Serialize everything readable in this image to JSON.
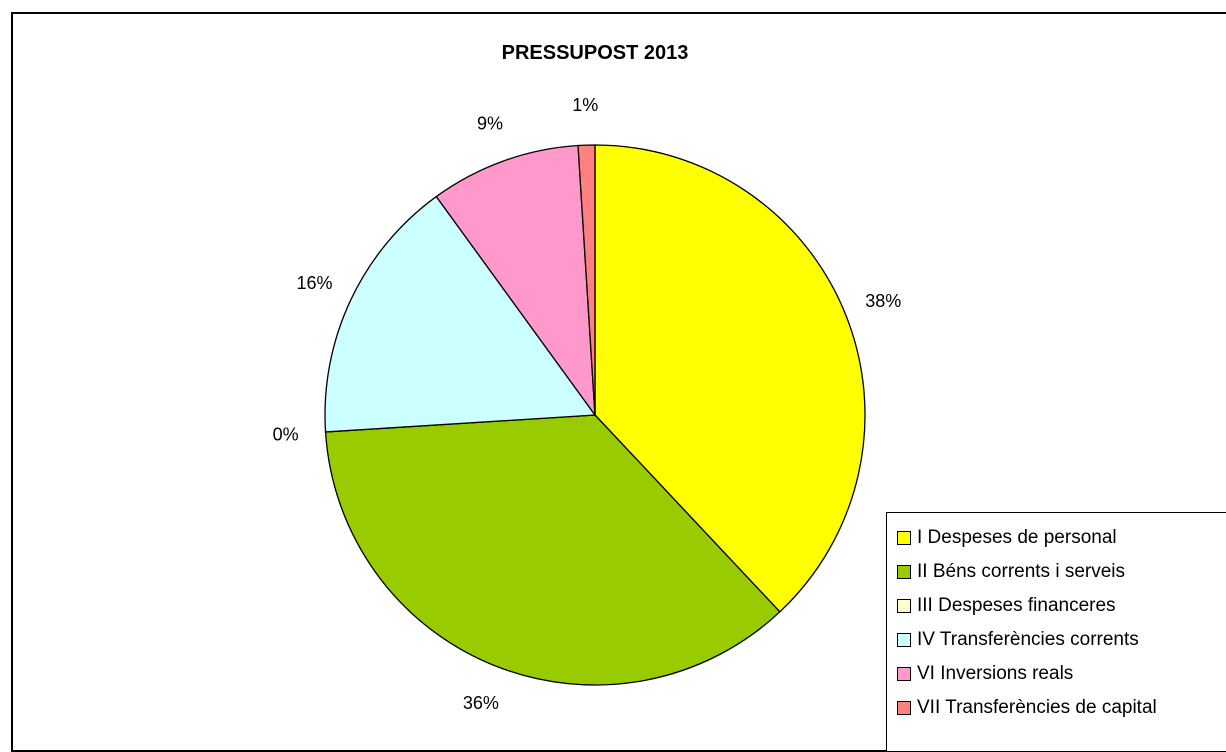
{
  "chart_data": {
    "type": "pie",
    "title": "PRESSUPOST 2013",
    "categories": [
      "I Despeses de personal",
      "II Béns corrents i serveis",
      "III Despeses financeres",
      "IV Transferències corrents",
      "VI Inversions reals",
      "VII Transferències de capital"
    ],
    "values": [
      38,
      36,
      0,
      16,
      9,
      1
    ],
    "data_labels": [
      "38%",
      "36%",
      "0%",
      "16%",
      "9%",
      "1%"
    ],
    "colors": [
      "#FFFF00",
      "#99CC00",
      "#FFFFCC",
      "#CCFFFF",
      "#FF99CC",
      "#FF8080"
    ],
    "legend_position": "bottom-right"
  }
}
